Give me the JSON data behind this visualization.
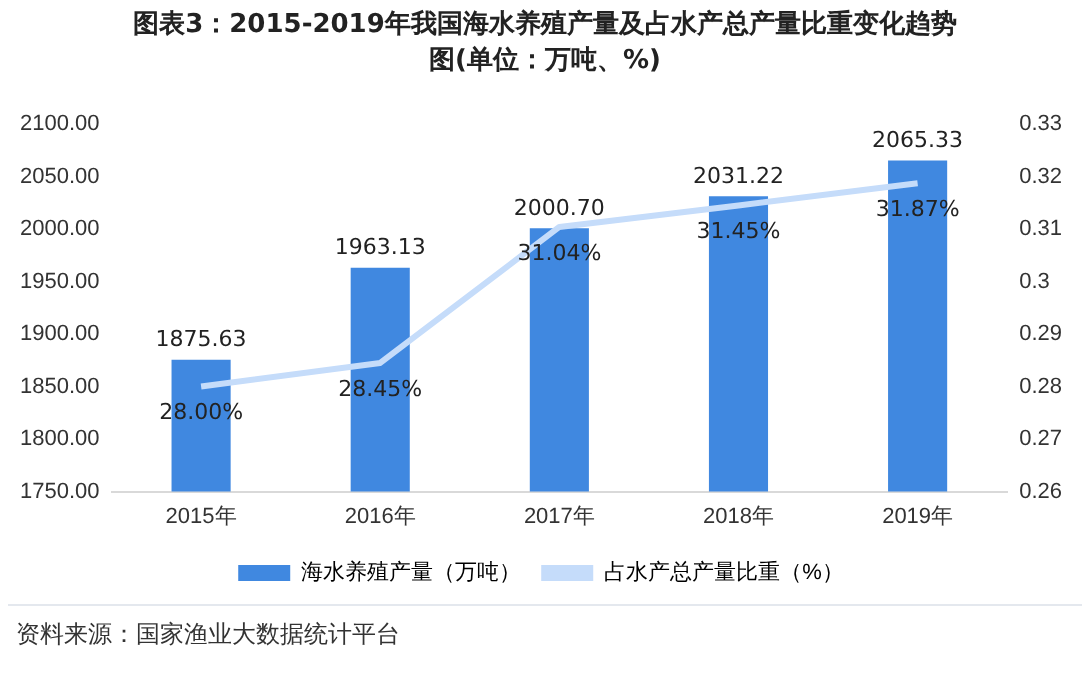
{
  "chart_data": {
    "type": "bar",
    "title": "图表3：2015-2019年我国海水养殖产量及占水产总产量比重变化趋势图(单位：万吨、%)",
    "categories": [
      "2015年",
      "2016年",
      "2017年",
      "2018年",
      "2019年"
    ],
    "series": [
      {
        "name": "海水养殖产量（万吨）",
        "color": "#4088e0",
        "values": [
          1875.63,
          1963.13,
          2000.7,
          2031.22,
          2065.33
        ],
        "value_labels": [
          "1875.63",
          "1963.13",
          "2000.70",
          "2031.22",
          "2065.33"
        ]
      },
      {
        "name": "占水产总产量比重（%）",
        "type": "line",
        "axis": "y2",
        "color": "#c5dcfa",
        "values": [
          0.28,
          0.2845,
          0.3104,
          0.3145,
          0.3187
        ],
        "value_labels": [
          "28.00%",
          "28.45%",
          "31.04%",
          "31.45%",
          "31.87%"
        ]
      }
    ],
    "ylim": [
      1750,
      2100
    ],
    "yticks": [
      {
        "value": 1750,
        "label": "1750.00"
      },
      {
        "value": 1800,
        "label": "1800.00"
      },
      {
        "value": 1850,
        "label": "1850.00"
      },
      {
        "value": 1900,
        "label": "1900.00"
      },
      {
        "value": 1950,
        "label": "1950.00"
      },
      {
        "value": 2000,
        "label": "2000.00"
      },
      {
        "value": 2050,
        "label": "2050.00"
      },
      {
        "value": 2100,
        "label": "2100.00"
      }
    ],
    "y2lim": [
      0.26,
      0.33
    ],
    "y2ticks": [
      0.26,
      0.27,
      0.28,
      0.29,
      0.3,
      0.31,
      0.32,
      0.33
    ],
    "grid": false,
    "legend": "bottom",
    "marker": "none",
    "line_style": "solid",
    "annotations": [
      "资料来源：国家渔业大数据统计平台"
    ]
  }
}
